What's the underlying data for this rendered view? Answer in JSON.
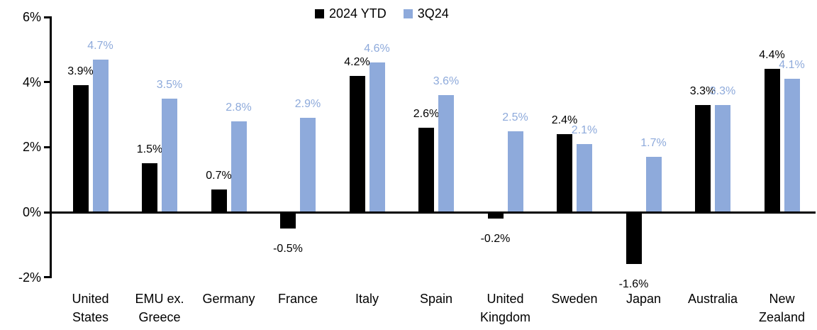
{
  "chart_data": {
    "type": "bar",
    "title": "",
    "categories": [
      "United States",
      "EMU ex. Greece",
      "Germany",
      "France",
      "Italy",
      "Spain",
      "United Kingdom",
      "Sweden",
      "Japan",
      "Australia",
      "New Zealand"
    ],
    "series": [
      {
        "name": "2024 YTD",
        "color": "#000000",
        "values": [
          3.9,
          1.5,
          0.7,
          -0.5,
          4.2,
          2.6,
          -0.2,
          2.4,
          -1.6,
          3.3,
          4.4
        ]
      },
      {
        "name": "3Q24",
        "color": "#8EAADB",
        "values": [
          4.7,
          3.5,
          2.8,
          2.9,
          4.6,
          3.6,
          2.5,
          2.1,
          1.7,
          3.3,
          4.1
        ]
      }
    ],
    "value_label_suffix": "%",
    "xlabel": "",
    "ylabel": "",
    "ylim": [
      -2,
      6
    ],
    "y_ticks": [
      {
        "value": 6,
        "label": "6%"
      },
      {
        "value": 4,
        "label": "4%"
      },
      {
        "value": 2,
        "label": "2%"
      },
      {
        "value": 0,
        "label": "0%"
      },
      {
        "value": -2,
        "label": "-2%"
      }
    ],
    "grid": false,
    "legend_position": "top-center",
    "value_labels_color_follows_series": true
  }
}
